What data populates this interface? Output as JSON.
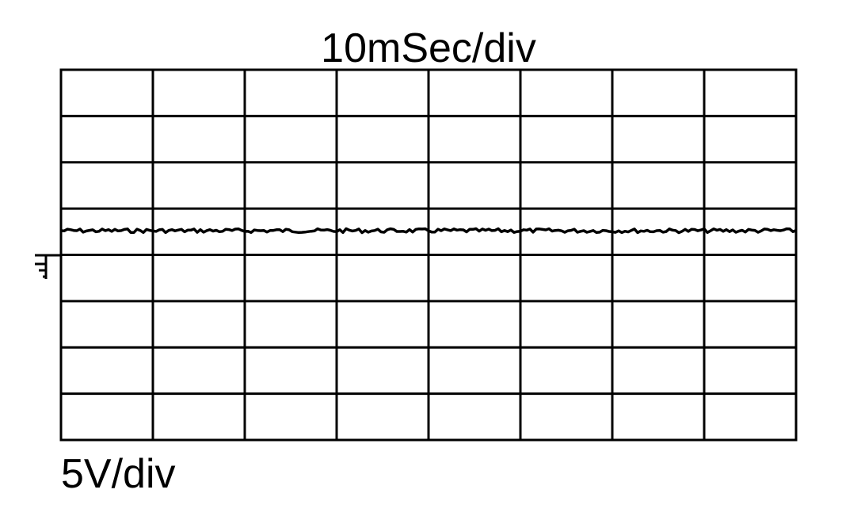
{
  "header": {
    "time_scale": "10mSec/div"
  },
  "footer": {
    "voltage_scale": "5V/div"
  }
}
